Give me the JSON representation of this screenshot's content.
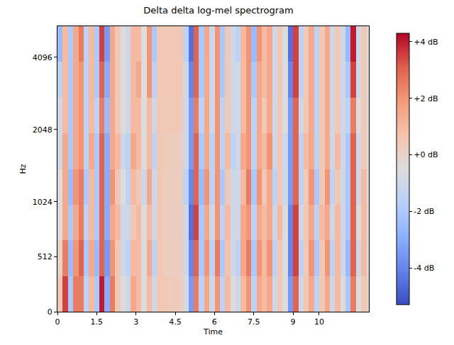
{
  "chart_data": {
    "type": "heatmap",
    "title": "Delta delta log-mel spectrogram",
    "x_label": "Time",
    "y_label": "Hz",
    "xlim": [
      0,
      11.9
    ],
    "xticks": [
      0,
      1.5,
      3,
      4.5,
      6,
      7.5,
      9,
      10
    ],
    "ylim": [
      0,
      5512
    ],
    "yticks": [
      0,
      512,
      1024,
      2048,
      4096
    ],
    "x": [
      0,
      0.2,
      0.4,
      0.6,
      0.8,
      1,
      1.2,
      1.4,
      1.6,
      1.8,
      2,
      2.2,
      2.4,
      2.6,
      2.8,
      3,
      3.2,
      3.4,
      3.6,
      3.8,
      4,
      4.2,
      4.4,
      4.6,
      4.8,
      5,
      5.2,
      5.4,
      5.6,
      5.8,
      6,
      6.2,
      6.4,
      6.6,
      6.8,
      7,
      7.2,
      7.4,
      7.6,
      7.8,
      8,
      8.2,
      8.4,
      8.6,
      8.8,
      9,
      9.2,
      9.4,
      9.6,
      9.8,
      10,
      10.2,
      10.4,
      10.6,
      10.8,
      11,
      11.2,
      11.4,
      11.6,
      11.8,
      12
    ],
    "y": [
      0,
      332,
      664,
      996,
      1403,
      1976,
      2785,
      3917,
      5512
    ],
    "cells": [
      [
        0.5,
        3.5,
        -2,
        2.5,
        2.5,
        -1.5,
        1,
        -2,
        4,
        -3,
        2.5,
        0.5,
        -0.5,
        -1,
        1.5,
        1,
        -0.5,
        1,
        -1,
        0.5,
        0.5,
        0.3,
        0.4,
        0.3,
        -0.8,
        -3.5,
        2.5,
        -1.5,
        1.5,
        -1,
        2,
        -1.5,
        1,
        -0.5,
        -1,
        1,
        2,
        -1.5,
        1.5,
        1,
        1.5,
        -1,
        0.5,
        -0.5,
        -3.5,
        3,
        -1,
        0.5,
        1.5,
        -1.5,
        0.5,
        1.5,
        -1,
        1,
        -0.5,
        -2,
        2.5,
        -0.5,
        0.5,
        0
      ],
      [
        0,
        2.5,
        -2.5,
        2,
        3,
        -2,
        1.5,
        -2.5,
        3,
        -3.5,
        2,
        0.5,
        -1,
        -1.5,
        1,
        1,
        -0.5,
        1.5,
        -1.5,
        0.5,
        0.3,
        0.2,
        0.3,
        0.2,
        -1,
        -4,
        3,
        -2,
        2,
        -1.5,
        2.5,
        -2,
        0.8,
        -1,
        -1.5,
        1.5,
        2.5,
        -2,
        2,
        1,
        2,
        -1.5,
        0.5,
        -0.5,
        -4,
        3.5,
        -1.5,
        0.5,
        2,
        -2,
        0.5,
        2,
        -1.5,
        1,
        -1,
        -2.5,
        3,
        -1,
        1,
        -0.5
      ],
      [
        -0.5,
        1.5,
        -2,
        1.5,
        2.5,
        -1.5,
        1,
        -2,
        3,
        -3,
        1.5,
        1,
        -1,
        -1,
        0.5,
        1,
        -0.5,
        1,
        -1,
        0.5,
        0.3,
        0.3,
        0.2,
        0.3,
        -1,
        -4.5,
        3.5,
        -2,
        1.5,
        -1,
        2,
        -1.5,
        1,
        -1,
        -1,
        1.5,
        2,
        -1.5,
        1.5,
        1,
        1.5,
        -1,
        1,
        -0.5,
        -4,
        3.5,
        -1,
        0.5,
        1.5,
        -1.5,
        1,
        1.5,
        -1,
        1,
        -1,
        -2,
        3,
        -0.5,
        1,
        -0.5
      ],
      [
        -0.5,
        1.5,
        -2.5,
        2,
        2.5,
        -2,
        1,
        -2,
        3,
        -3,
        2,
        0.5,
        -0.5,
        -1.5,
        1,
        0.5,
        -1,
        1.5,
        -1,
        0.5,
        0.3,
        0.2,
        0.3,
        0.2,
        -1.5,
        -4,
        3,
        -2.5,
        2,
        -1.5,
        2,
        -2,
        0.5,
        -1,
        -1,
        1,
        2.5,
        -2,
        2,
        0.5,
        1.5,
        -1.5,
        0.5,
        -1,
        -3.5,
        3,
        -1.5,
        0.5,
        2,
        -2,
        0.5,
        2,
        -1.5,
        0.5,
        -1,
        -2,
        3,
        -1,
        1,
        -0.5
      ],
      [
        -1,
        1.5,
        -2,
        1.5,
        2,
        -1.5,
        1.5,
        -2,
        3,
        -3,
        1.5,
        1,
        -1,
        -1.5,
        1.5,
        1,
        -0.5,
        1,
        -1.5,
        0.5,
        0.4,
        0.3,
        0.3,
        0.2,
        -1,
        -3.5,
        3,
        -2,
        1.5,
        -1.5,
        2,
        -1.5,
        1,
        -1.5,
        -1,
        1.5,
        2,
        -1.5,
        1.5,
        1,
        2,
        -1,
        0.5,
        -1,
        -3.5,
        3,
        -1.5,
        1,
        1.5,
        -1.5,
        0.5,
        1.5,
        -1,
        1,
        -1,
        -2,
        3,
        -1,
        0.5,
        -0.5
      ],
      [
        -1,
        1,
        -2,
        1.5,
        2,
        -1.5,
        1,
        -1.5,
        2.5,
        -2.5,
        1.5,
        0.5,
        -0.5,
        -1,
        1,
        1,
        -0.5,
        1,
        -1,
        0.5,
        0.5,
        0.4,
        0.5,
        0.4,
        -1,
        -3.5,
        2.5,
        -1.5,
        1.5,
        -1,
        2,
        -1.5,
        0.5,
        -1,
        -1,
        1,
        2,
        -1.5,
        1.5,
        0.5,
        1.5,
        -1,
        0.5,
        -0.5,
        -3.5,
        3,
        -1,
        0.5,
        1.5,
        -1.5,
        0.5,
        1.5,
        -1,
        0.5,
        -1,
        -1.5,
        2.5,
        -0.5,
        0.5,
        -0.5
      ],
      [
        -1.5,
        1,
        -2,
        1.5,
        2,
        -1.5,
        1,
        -2,
        3,
        -3,
        1.5,
        0.5,
        -0.5,
        -1,
        1,
        1.5,
        -0.5,
        2,
        -1.5,
        0.5,
        0.5,
        0.5,
        0.5,
        0.5,
        -1,
        -4,
        3,
        -2,
        1.5,
        -1,
        2,
        -2,
        0.5,
        -1,
        -1,
        1,
        2,
        -2,
        1.5,
        1,
        1.5,
        -1,
        0.5,
        -0.5,
        -4,
        3.5,
        -1.5,
        0.5,
        1.5,
        -1.5,
        0.5,
        1.5,
        -1,
        0.5,
        -1,
        -2,
        3.5,
        -1,
        0.5,
        -0.5
      ],
      [
        -2.5,
        1,
        -2,
        1.5,
        2.5,
        -1.5,
        1,
        -2,
        3.5,
        -3.5,
        1.5,
        0.5,
        -0.5,
        -1,
        1,
        1,
        -0.5,
        2,
        -2,
        0.5,
        0.5,
        0.5,
        0.5,
        0.5,
        -1.5,
        -4.5,
        3,
        -2,
        1.5,
        -1,
        2,
        -2,
        0.5,
        -1,
        -1.5,
        1,
        2,
        -2.5,
        2,
        1,
        1.5,
        -1,
        0.5,
        -0.5,
        -4.5,
        3.5,
        -1.5,
        0.5,
        1.5,
        -1.5,
        0.5,
        1.5,
        -1,
        0.5,
        -1,
        -2.5,
        4,
        -1,
        0.5,
        -0.5
      ]
    ],
    "colorbar": {
      "range": [
        -5.3,
        4.3
      ],
      "ticks": [
        {
          "value": 4,
          "label": "+4 dB"
        },
        {
          "value": 2,
          "label": "+2 dB"
        },
        {
          "value": 0,
          "label": "+0 dB"
        },
        {
          "value": -2,
          "label": "-2 dB"
        },
        {
          "value": -4,
          "label": "-4 dB"
        }
      ]
    }
  }
}
